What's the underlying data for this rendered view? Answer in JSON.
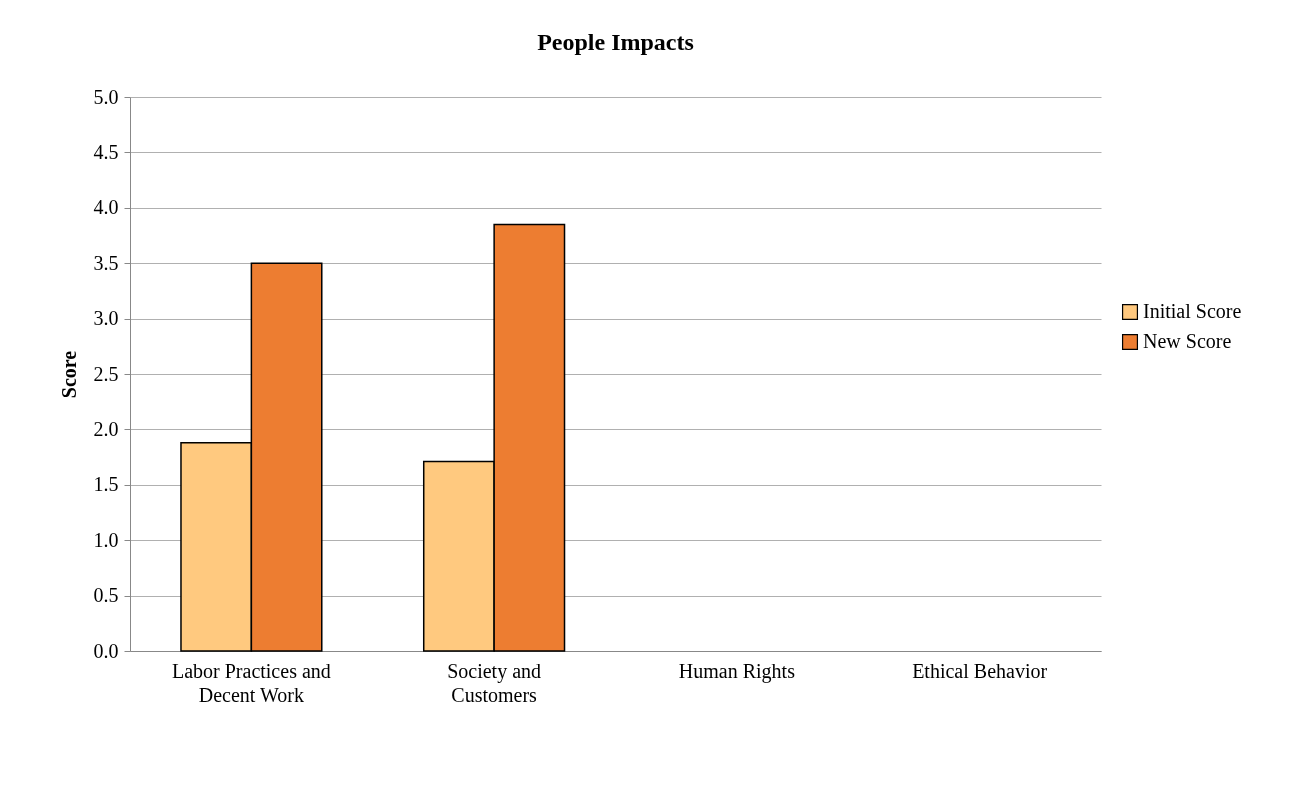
{
  "chart_data": {
    "type": "bar",
    "title": "People Impacts",
    "ylabel": "Score",
    "categories": [
      "Labor Practices and Decent Work",
      "Society and Customers",
      "Human Rights",
      "Ethical Behavior"
    ],
    "series": [
      {
        "name": "Initial Score",
        "color": "#ffc97f",
        "values": [
          1.88,
          1.71,
          null,
          null
        ]
      },
      {
        "name": "New Score",
        "color": "#ed7d31",
        "values": [
          3.5,
          3.85,
          null,
          null
        ]
      }
    ],
    "ylim": [
      0,
      5
    ],
    "yticks": [
      {
        "value": 0,
        "label": "0.0"
      },
      {
        "value": 0.5,
        "label": "0.5"
      },
      {
        "value": 1,
        "label": "1.0"
      },
      {
        "value": 1.5,
        "label": "1.5"
      },
      {
        "value": 2,
        "label": "2.0"
      },
      {
        "value": 2.5,
        "label": "2.5"
      },
      {
        "value": 3,
        "label": "3.0"
      },
      {
        "value": 3.5,
        "label": "3.5"
      },
      {
        "value": 4,
        "label": "4.0"
      },
      {
        "value": 4.5,
        "label": "4.5"
      },
      {
        "value": 5,
        "label": "5.0"
      }
    ],
    "grid": "y",
    "legend": "right"
  }
}
